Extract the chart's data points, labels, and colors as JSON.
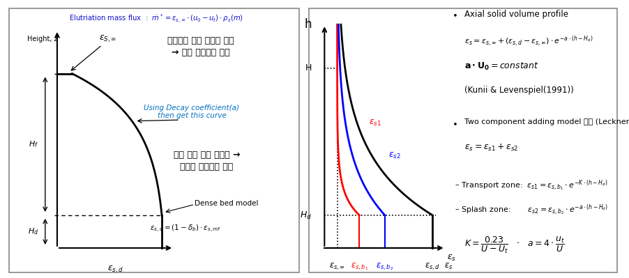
{
  "fig_width": 9.03,
  "fig_height": 3.99,
  "left_panel": {
    "title": "Elutriation mass flux  :  $\\dot{m}^* = \\varepsilon_{s,\\infty} \\cdot (u_0 - u_t) \\cdot \\rho_s(m)$",
    "title_color": "#1111cc",
    "ylabel": "Height, z",
    "xlabel": "$\\varepsilon_{s,d}$",
    "eps_inf_label": "$\\varepsilon_{S,\\infty}$",
    "Hf_label": "$H_f$",
    "Hd_label": "$H_d$",
    "annotation_top": "출구부분 고체 체류량 결정\n→ 고체 순환량에 영향",
    "annotation_mid": "Using Decay coefficient(a)\nthen get this curve",
    "annotation_mid_color": "#0070c0",
    "annotation_bot": "길이 방향 고체 체류량 →\n보일러 열전달에 영향",
    "dense_bed_label": "Dense bed model",
    "dense_bed_formula": "$\\varepsilon_{s,d} = (1 - \\delta_b) \\cdot \\varepsilon_{s,mf}$"
  },
  "right_panel": {
    "h_label": "h",
    "H_label": "H",
    "Hd_label": "$H_d$",
    "xlabel_items": [
      "$\\varepsilon_{s,\\infty}$",
      "$\\varepsilon_{s,b_1}$",
      "$\\varepsilon_{s,b_2}$",
      "$\\varepsilon_{s,d}$",
      "$\\varepsilon_s$"
    ],
    "xlabel_colors": [
      "black",
      "red",
      "blue",
      "black",
      "black"
    ],
    "es1_label": "$\\varepsilon_{s1}$",
    "es1_color": "red",
    "es2_label": "$\\varepsilon_{s2}$",
    "es2_color": "blue"
  }
}
